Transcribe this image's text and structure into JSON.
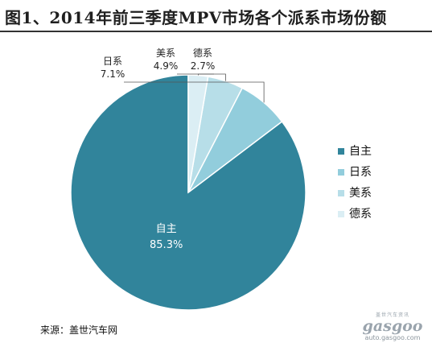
{
  "title": "图1、2014年前三季度MPV市场各个派系市场份额",
  "source": "来源：盖世汽车网",
  "watermark": {
    "top": "盖世汽车资讯",
    "logo": "gasgoo",
    "url": "auto.gasgoo.com"
  },
  "chart_data": {
    "type": "pie",
    "categories": [
      "自主",
      "日系",
      "美系",
      "德系"
    ],
    "values": [
      85.3,
      7.1,
      4.9,
      2.7
    ],
    "value_labels": [
      "85.3%",
      "7.1%",
      "4.9%",
      "2.7%"
    ],
    "colors": [
      "#31849b",
      "#92cddc",
      "#b7dee8",
      "#dbeef4"
    ],
    "legend": [
      "自主",
      "日系",
      "美系",
      "德系"
    ],
    "legend_position": "right",
    "start_angle": "12 o'clock",
    "direction": "counterclockwise"
  }
}
